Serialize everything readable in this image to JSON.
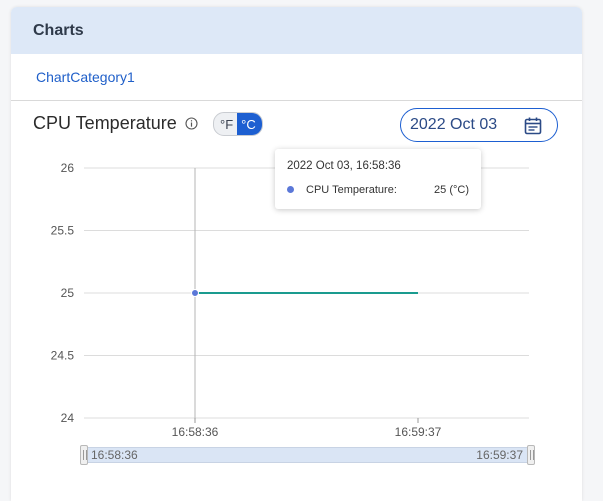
{
  "header": {
    "title": "Charts"
  },
  "category": {
    "label": "ChartCategory1"
  },
  "chart_panel": {
    "title": "CPU Temperature",
    "units": {
      "fahrenheit": "°F",
      "celsius": "°C",
      "selected": "°C"
    },
    "date": "2022 Oct 03"
  },
  "tooltip": {
    "time": "2022 Oct 03, 16:58:36",
    "series_label": "CPU Temperature:",
    "value": "25 (°C)"
  },
  "slider": {
    "start_label": "16:58:36",
    "end_label": "16:59:37"
  },
  "colors": {
    "accent": "#1d5fd1",
    "line": "#1a9b8f",
    "point": "#5b78d8"
  },
  "chart_data": {
    "type": "line",
    "x": [
      "16:58:36",
      "16:59:37"
    ],
    "series": [
      {
        "name": "CPU Temperature",
        "values": [
          25,
          25
        ]
      }
    ],
    "ylim": [
      24,
      26
    ],
    "yticks": [
      24,
      24.5,
      25,
      25.5,
      26
    ],
    "xticks": [
      "16:58:36",
      "16:59:37"
    ],
    "title": "CPU Temperature",
    "xlabel": "",
    "ylabel": "",
    "grid": true
  }
}
